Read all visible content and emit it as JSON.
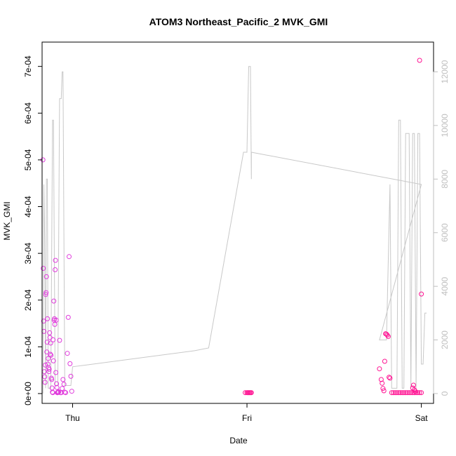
{
  "chart_data": {
    "type": "scatter",
    "title": "ATOM3 Northeast_Pacific_2 MVK_GMI",
    "xlabel": "Date",
    "ylabel": "MVK_GMI",
    "x_ticks": [
      {
        "label": "Thu",
        "value": 0
      },
      {
        "label": "Fri",
        "value": 1
      },
      {
        "label": "Sat",
        "value": 2
      }
    ],
    "xlim": [
      -0.175,
      2.07
    ],
    "ylim": [
      0,
      0.00074
    ],
    "y_ticks": [
      {
        "label": "0e+00",
        "value": 0
      },
      {
        "label": "1e-04",
        "value": 0.0001
      },
      {
        "label": "2e-04",
        "value": 0.0002
      },
      {
        "label": "3e-04",
        "value": 0.0003
      },
      {
        "label": "4e-04",
        "value": 0.0004
      },
      {
        "label": "5e-04",
        "value": 0.0005
      },
      {
        "label": "6e-04",
        "value": 0.0006
      },
      {
        "label": "7e-04",
        "value": 0.0007
      }
    ],
    "y2lim": [
      0,
      12900
    ],
    "y2_ticks": [
      {
        "label": "0",
        "value": 0
      },
      {
        "label": "2000",
        "value": 2000
      },
      {
        "label": "4000",
        "value": 4000
      },
      {
        "label": "6000",
        "value": 6000
      },
      {
        "label": "8000",
        "value": 8000
      },
      {
        "label": "10000",
        "value": 10000
      },
      {
        "label": "12000",
        "value": 12000
      }
    ],
    "grid": false,
    "colors": {
      "points": "#ff1493",
      "points_alt": "#e03cdc",
      "line": "#c8c8c8",
      "right_axis": "#bfbfbf"
    },
    "line_series": {
      "axis": "right",
      "points": [
        [
          -0.17,
          0
        ],
        [
          -0.165,
          7800
        ],
        [
          -0.16,
          5800
        ],
        [
          -0.155,
          200
        ],
        [
          -0.15,
          8000
        ],
        [
          -0.145,
          8000
        ],
        [
          -0.14,
          200
        ],
        [
          -0.125,
          200
        ],
        [
          -0.115,
          10200
        ],
        [
          -0.11,
          10200
        ],
        [
          -0.1,
          300
        ],
        [
          -0.085,
          300
        ],
        [
          -0.075,
          11000
        ],
        [
          -0.065,
          11000
        ],
        [
          -0.06,
          12000
        ],
        [
          -0.055,
          12000
        ],
        [
          -0.045,
          300
        ],
        [
          -0.02,
          300
        ],
        [
          -0.01,
          300
        ],
        [
          0.0,
          1000
        ],
        [
          0.7,
          1600
        ],
        [
          0.78,
          1700
        ],
        [
          0.98,
          9000
        ],
        [
          1.0,
          9000
        ],
        [
          1.01,
          12200
        ],
        [
          1.02,
          12200
        ],
        [
          1.025,
          8000
        ],
        [
          1.025,
          9000
        ],
        [
          2.0,
          7800
        ],
        [
          1.76,
          2000
        ],
        [
          1.8,
          2000
        ],
        [
          1.82,
          7800
        ],
        [
          1.83,
          200
        ],
        [
          1.86,
          200
        ],
        [
          1.87,
          10200
        ],
        [
          1.88,
          10200
        ],
        [
          1.89,
          200
        ],
        [
          1.9,
          200
        ],
        [
          1.91,
          9700
        ],
        [
          1.93,
          9700
        ],
        [
          1.94,
          200
        ],
        [
          1.95,
          9700
        ],
        [
          1.96,
          9700
        ],
        [
          1.97,
          200
        ],
        [
          1.98,
          9700
        ],
        [
          1.99,
          9700
        ],
        [
          2.0,
          1100
        ],
        [
          2.01,
          1100
        ],
        [
          2.02,
          3000
        ],
        [
          2.03,
          3000
        ]
      ]
    },
    "series": [
      {
        "axis": "left",
        "points": [
          [
            -0.17,
            0.0005
          ],
          [
            -0.168,
            0.000268
          ],
          [
            -0.166,
            0.000155
          ],
          [
            -0.164,
            0.000133
          ],
          [
            -0.162,
            4.7e-05
          ],
          [
            -0.16,
            3.6e-05
          ],
          [
            -0.158,
            2.4e-05
          ],
          [
            -0.156,
            6.1e-05
          ],
          [
            -0.154,
            0.000212
          ],
          [
            -0.152,
            0.000216
          ],
          [
            -0.15,
            0.00025
          ],
          [
            -0.148,
            8.9e-05
          ],
          [
            -0.146,
            0.00011
          ],
          [
            -0.144,
            0.00016
          ],
          [
            -0.142,
            6.3e-05
          ],
          [
            -0.14,
            7.5e-05
          ],
          [
            -0.138,
            5.5e-05
          ],
          [
            -0.136,
            4.7e-05
          ],
          [
            -0.134,
            5.2e-05
          ],
          [
            -0.132,
            0.00013
          ],
          [
            -0.13,
            0.00012
          ],
          [
            -0.128,
            8.4e-05
          ],
          [
            -0.126,
            0.000108
          ],
          [
            -0.124,
            8.2e-05
          ],
          [
            -0.122,
            3.3e-05
          ],
          [
            -0.12,
            3e-05
          ],
          [
            -0.118,
            1.2e-05
          ],
          [
            -0.116,
            3e-06
          ],
          [
            -0.114,
            2e-06
          ],
          [
            -0.112,
            0.000115
          ],
          [
            -0.11,
            7e-05
          ],
          [
            -0.108,
            0.000198
          ],
          [
            -0.106,
            0.000157
          ],
          [
            -0.104,
            0.00016
          ],
          [
            -0.102,
            0.000148
          ],
          [
            -0.1,
            0.000265
          ],
          [
            -0.098,
            0.000285
          ],
          [
            -0.096,
            4.5e-05
          ],
          [
            -0.094,
            0.000157
          ],
          [
            -0.092,
            2.1e-05
          ],
          [
            -0.09,
            1.3e-05
          ],
          [
            -0.088,
            2e-06
          ],
          [
            -0.086,
            2e-06
          ],
          [
            -0.084,
            3e-06
          ],
          [
            -0.082,
            4e-06
          ],
          [
            -0.08,
            3e-06
          ],
          [
            -0.075,
            0.000114
          ],
          [
            -0.07,
            2e-06
          ],
          [
            -0.065,
            2e-06
          ],
          [
            -0.06,
            1.1e-05
          ],
          [
            -0.055,
            3e-05
          ],
          [
            -0.05,
            2e-05
          ],
          [
            -0.045,
            3e-06
          ],
          [
            -0.04,
            2e-06
          ],
          [
            -0.03,
            8.6e-05
          ],
          [
            -0.025,
            0.000163
          ],
          [
            -0.02,
            0.000293
          ],
          [
            -0.015,
            6.4e-05
          ],
          [
            -0.01,
            3.7e-05
          ],
          [
            -0.005,
            5e-06
          ],
          [
            0.99,
            2e-06
          ],
          [
            1.0,
            2e-06
          ],
          [
            1.005,
            2e-06
          ],
          [
            1.01,
            2e-06
          ],
          [
            1.015,
            2e-06
          ],
          [
            1.02,
            2e-06
          ],
          [
            1.025,
            2e-06
          ],
          [
            1.76,
            5.3e-05
          ],
          [
            1.77,
            3e-05
          ],
          [
            1.775,
            2.2e-05
          ],
          [
            1.78,
            1.1e-05
          ],
          [
            1.785,
            6e-06
          ],
          [
            1.79,
            6.9e-05
          ],
          [
            1.795,
            0.000128
          ],
          [
            1.8,
            0.000127
          ],
          [
            1.805,
            0.000125
          ],
          [
            1.81,
            0.000122
          ],
          [
            1.815,
            3.5e-05
          ],
          [
            1.82,
            3.3e-05
          ],
          [
            1.83,
            2e-06
          ],
          [
            1.84,
            2e-06
          ],
          [
            1.85,
            2e-06
          ],
          [
            1.86,
            2e-06
          ],
          [
            1.87,
            2e-06
          ],
          [
            1.88,
            2e-06
          ],
          [
            1.89,
            2e-06
          ],
          [
            1.9,
            2e-06
          ],
          [
            1.91,
            2e-06
          ],
          [
            1.92,
            2e-06
          ],
          [
            1.93,
            2e-06
          ],
          [
            1.94,
            2e-06
          ],
          [
            1.95,
            2e-06
          ],
          [
            1.96,
            2e-06
          ],
          [
            1.97,
            2e-06
          ],
          [
            1.98,
            2e-06
          ],
          [
            1.99,
            2e-06
          ],
          [
            2.0,
            2e-06
          ],
          [
            1.95,
            1.2e-05
          ],
          [
            1.955,
            1.8e-05
          ],
          [
            1.96,
            8e-06
          ],
          [
            1.965,
            5e-06
          ],
          [
            1.99,
            0.000713
          ],
          [
            2.0,
            0.000213
          ]
        ]
      }
    ]
  }
}
